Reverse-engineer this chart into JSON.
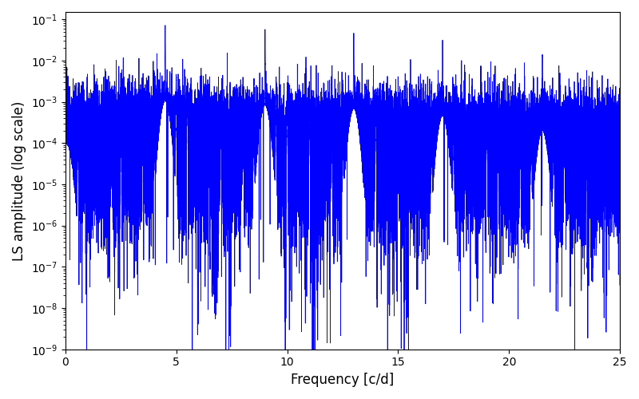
{
  "title": "",
  "xlabel": "Frequency [c/d]",
  "ylabel": "LS amplitude (log scale)",
  "line_color": "#0000ff",
  "line_width": 0.6,
  "xlim": [
    0,
    25
  ],
  "ylim": [
    1e-09,
    0.15
  ],
  "yscale": "log",
  "figsize": [
    8.0,
    5.0
  ],
  "dpi": 100,
  "freq_min": 0.0,
  "freq_max": 25.0,
  "n_points": 50000,
  "peak_freqs": [
    0.07,
    4.5,
    9.0,
    13.0,
    17.0,
    21.5
  ],
  "peak_amps": [
    0.006,
    0.07,
    0.055,
    0.045,
    0.03,
    0.013
  ],
  "background_color": "#ffffff",
  "noise_floor": 3e-05,
  "noise_spread": 1.2
}
